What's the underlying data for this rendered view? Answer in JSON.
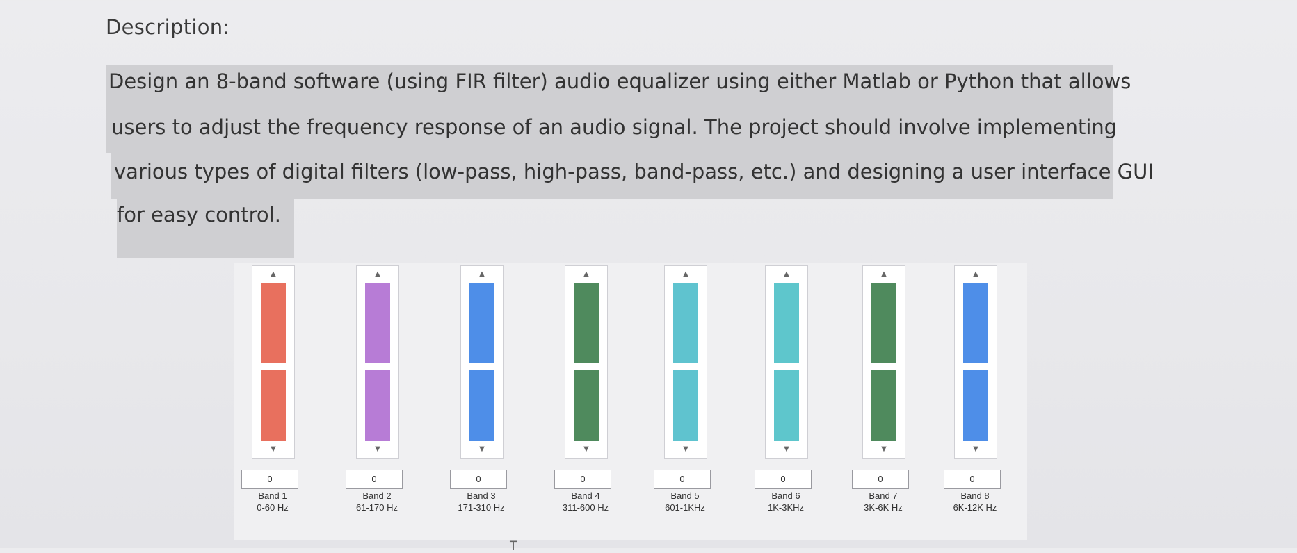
{
  "document": {
    "heading": "Description:",
    "paragraph_lines": [
      "Design an 8-band software (using FIR filter) audio equalizer using either Matlab or Python that allows",
      "users to adjust the frequency response of an audio signal. The project should involve implementing",
      "various types of digital filters (low-pass, high-pass, band-pass, etc.) and designing a user interface GUI",
      "for easy control."
    ]
  },
  "equalizer": {
    "bands": [
      {
        "value": "0",
        "name": "Band 1",
        "range": "0-60 Hz",
        "color": "#e8705e",
        "level": 0.5
      },
      {
        "value": "0",
        "name": "Band 2",
        "range": "61-170 Hz",
        "color": "#b77cd6",
        "level": 0.5
      },
      {
        "value": "0",
        "name": "Band 3",
        "range": "171-310 Hz",
        "color": "#4e8ee8",
        "level": 0.5
      },
      {
        "value": "0",
        "name": "Band 4",
        "range": "311-600 Hz",
        "color": "#4f8a5d",
        "level": 0.5
      },
      {
        "value": "0",
        "name": "Band 5",
        "range": "601-1KHz",
        "color": "#5fc3cf",
        "level": 0.5
      },
      {
        "value": "0",
        "name": "Band 6",
        "range": "1K-3KHz",
        "color": "#5ec6cc",
        "level": 0.5
      },
      {
        "value": "0",
        "name": "Band 7",
        "range": "3K-6K Hz",
        "color": "#4f8a5d",
        "level": 0.5
      },
      {
        "value": "0",
        "name": "Band 8",
        "range": "6K-12K Hz",
        "color": "#4e8ee8",
        "level": 0.5
      }
    ],
    "arrow_up_icon": "triangle-up",
    "arrow_down_icon": "triangle-down"
  }
}
